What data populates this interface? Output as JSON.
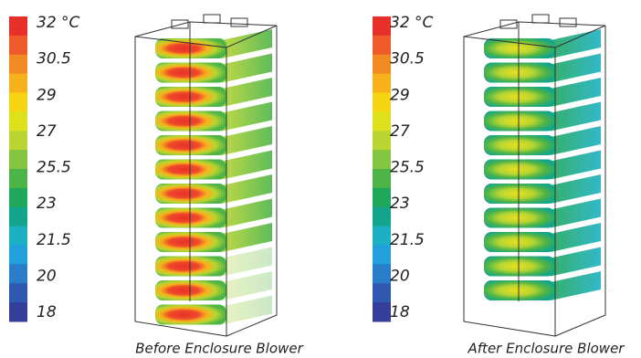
{
  "panels": [
    {
      "caption": "Before Enclosure Blower",
      "legend": {
        "labels": [
          "32 °C",
          "30.5",
          "29",
          "27",
          "25.5",
          "23",
          "21.5",
          "20",
          "18"
        ],
        "colors": [
          "#e8302b",
          "#ee5a2a",
          "#f28a23",
          "#f7b21b",
          "#f5d511",
          "#dfe01c",
          "#b8d531",
          "#84c541",
          "#4db448",
          "#1fa75a",
          "#13a58c",
          "#1bb0c4",
          "#21a0dc",
          "#2a7dc8",
          "#2f59b0",
          "#353f9a"
        ]
      }
    },
    {
      "caption": "After Enclosure Blower",
      "legend": {
        "labels": [
          "32 °C",
          "30.5",
          "29",
          "27",
          "25.5",
          "23",
          "21.5",
          "20",
          "18"
        ],
        "colors": [
          "#e8302b",
          "#ee5a2a",
          "#f28a23",
          "#f7b21b",
          "#f5d511",
          "#dfe01c",
          "#b8d531",
          "#84c541",
          "#4db448",
          "#1fa75a",
          "#13a58c",
          "#1bb0c4",
          "#21a0dc",
          "#2a7dc8",
          "#2f59b0",
          "#353f9a"
        ]
      }
    }
  ]
}
